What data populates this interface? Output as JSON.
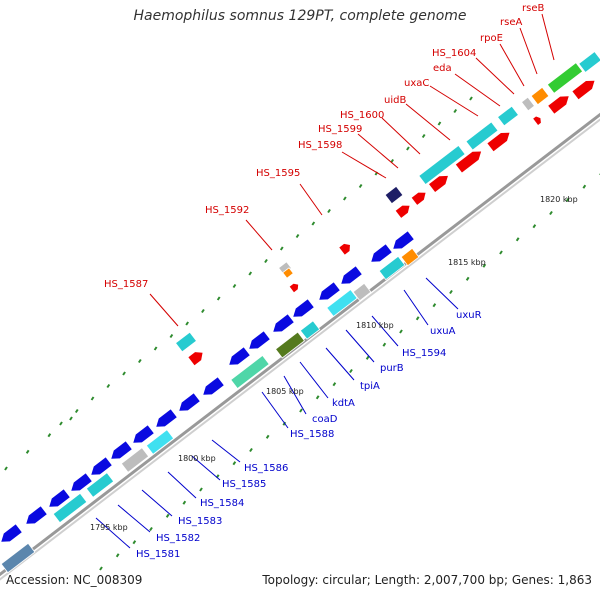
{
  "title": "Haemophilus somnus 129PT, complete genome",
  "footer": {
    "accession": "Accession: NC_008309",
    "summary": "Topology: circular; Length: 2,007,700 bp; Genes: 1,863"
  },
  "colors": {
    "forward_label": "#d40000",
    "reverse_label": "#0000cc",
    "backbone": "#999999",
    "tick": "#2e8b2e"
  },
  "ticks": [
    "1795 kbp",
    "1800 kbp",
    "1805 kbp",
    "1810 kbp",
    "1815 kbp",
    "1820 kbp"
  ],
  "forward_genes": [
    "HS_1587",
    "HS_1592",
    "HS_1595",
    "HS_1598",
    "HS_1599",
    "HS_1600",
    "uidB",
    "uxaC",
    "eda",
    "HS_1604",
    "rpoE",
    "rseA",
    "rseB"
  ],
  "reverse_genes": [
    "HS_1581",
    "HS_1582",
    "HS_1583",
    "HS_1584",
    "HS_1585",
    "HS_1586",
    "HS_1588",
    "coaD",
    "kdtA",
    "tpiA",
    "purB",
    "HS_1594",
    "uxuA",
    "uxuR"
  ]
}
